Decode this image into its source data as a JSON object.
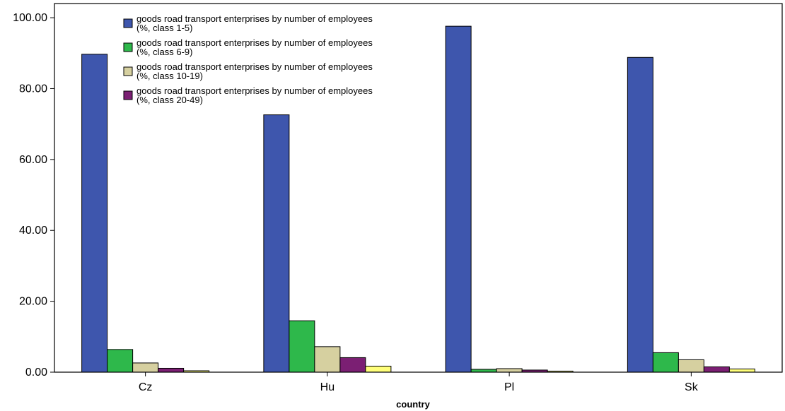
{
  "chart_data": {
    "type": "bar",
    "title": "",
    "xlabel": "country",
    "ylabel": "",
    "ylim": [
      0,
      104
    ],
    "yticks": [
      "0.00",
      "20.00",
      "40.00",
      "60.00",
      "80.00",
      "100.00"
    ],
    "categories": [
      "Cz",
      "Hu",
      "Pl",
      "Sk"
    ],
    "legend_position": "top-left",
    "grid": false,
    "series": [
      {
        "name": "goods road transport enterprises by number of employees (%, class 1-5)",
        "legend_line1": "goods road transport enterprises by number of employees",
        "legend_line2": "(%, class 1-5)",
        "color": "#3e56ad",
        "values": [
          89.7,
          72.6,
          97.6,
          88.8
        ]
      },
      {
        "name": "goods road transport enterprises by number of employees (%, class 6-9)",
        "legend_line1": "goods road transport enterprises by number of employees",
        "legend_line2": "(%, class 6-9)",
        "color": "#2eb84b",
        "values": [
          6.4,
          14.5,
          0.8,
          5.5
        ]
      },
      {
        "name": "goods road transport enterprises by number of employees (%, class 10-19)",
        "legend_line1": "goods road transport enterprises by number of employees",
        "legend_line2": "(%, class 10-19)",
        "color": "#d6d0a0",
        "values": [
          2.6,
          7.2,
          1.0,
          3.5
        ]
      },
      {
        "name": "goods road transport enterprises by number of employees (%, class 20-49)",
        "legend_line1": "goods road transport enterprises by number of employees",
        "legend_line2": "(%, class 20-49)",
        "color": "#7b1f73",
        "values": [
          1.1,
          4.1,
          0.6,
          1.5
        ]
      },
      {
        "name": "",
        "color": "#ffff7a",
        "values": [
          0.4,
          1.7,
          0.3,
          0.9
        ]
      }
    ]
  }
}
